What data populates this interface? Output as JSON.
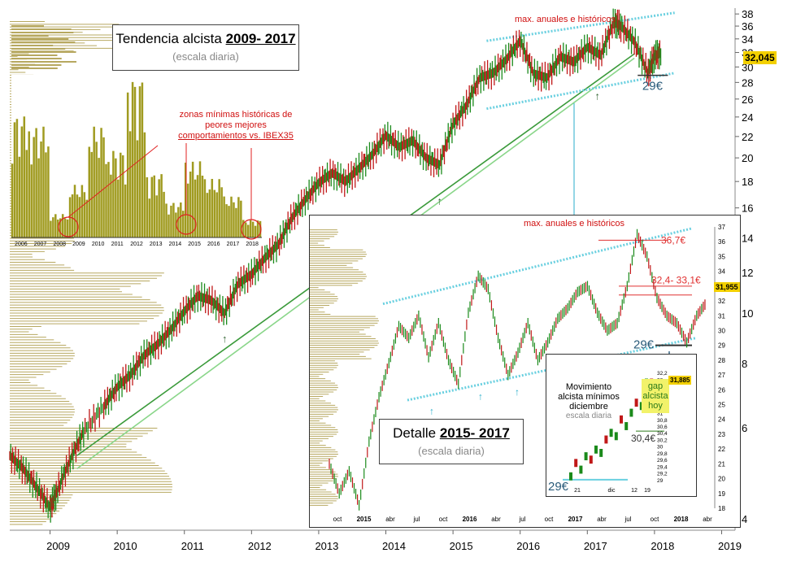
{
  "chart_data": [
    {
      "type": "line",
      "title": "Tendencia alcista 2009- 2017",
      "title_prefix": "Tendencia alcista",
      "title_period": "2009- 2017",
      "subtitle": "(escala diaria)",
      "x_ticks": [
        "2009",
        "2010",
        "2011",
        "2012",
        "2013",
        "2014",
        "2015",
        "2016",
        "2017",
        "2018",
        "2019"
      ],
      "y_ticks": [
        4,
        6,
        8,
        10,
        12,
        14,
        16,
        18,
        20,
        22,
        24,
        26,
        28,
        30,
        32,
        34,
        36,
        38
      ],
      "y_scale": "log",
      "ylim": [
        3.8,
        39
      ],
      "xlim": [
        2008.4,
        2019.2
      ],
      "last_price": "32,045",
      "series": [
        {
          "x": [
            2008.4,
            2008.6,
            2008.8,
            2009.0,
            2009.1,
            2009.3,
            2009.5,
            2009.8,
            2010.0,
            2010.2,
            2010.4,
            2010.6,
            2010.8,
            2011.0,
            2011.2,
            2011.4,
            2011.6,
            2011.8,
            2012.0,
            2012.2,
            2012.4,
            2012.6,
            2012.8,
            2013.0,
            2013.2,
            2013.4,
            2013.6,
            2013.8,
            2014.0,
            2014.2,
            2014.4,
            2014.6,
            2014.8,
            2015.0,
            2015.2,
            2015.4,
            2015.6,
            2015.8,
            2016.0,
            2016.2,
            2016.4,
            2016.6,
            2016.8,
            2017.0,
            2017.2,
            2017.4,
            2017.5,
            2017.7,
            2017.9,
            2018.0,
            2018.1
          ],
          "values": [
            5.3,
            5.0,
            4.6,
            4.2,
            4.5,
            5.2,
            5.9,
            6.6,
            7.2,
            7.6,
            8.3,
            8.7,
            9.3,
            10.1,
            10.8,
            10.6,
            10.0,
            11.4,
            11.9,
            12.8,
            13.6,
            15.3,
            16.6,
            17.9,
            18.7,
            18.0,
            19.1,
            20.3,
            22.1,
            21.0,
            21.6,
            20.0,
            19.4,
            23.2,
            25.3,
            28.6,
            29.2,
            31.1,
            33.7,
            29.1,
            28.6,
            31.4,
            30.7,
            32.8,
            31.6,
            36.7,
            36.0,
            33.6,
            29.2,
            31.5,
            32.0
          ]
        }
      ],
      "annotations": {
        "max_label": "max. anuales e históricos",
        "support_29": "29€"
      }
    },
    {
      "type": "bar",
      "title": "zonas mínimas históricas de peores mejores comportamientos vs. IBEX35",
      "title_lines": [
        "zonas mínimas históricas de",
        "peores mejores",
        "comportamientos vs. IBEX35"
      ],
      "categories": [
        "2006",
        "2007",
        "2008",
        "2009",
        "2010",
        "2011",
        "2012",
        "2013",
        "2014",
        "2015",
        "2016",
        "2017",
        "2018"
      ],
      "values": [
        42,
        38,
        8,
        18,
        38,
        30,
        55,
        22,
        12,
        26,
        20,
        14,
        6
      ]
    },
    {
      "type": "line",
      "title": "Detalle 2015- 2017",
      "title_prefix": "Detalle",
      "title_period": "2015- 2017",
      "subtitle": "(escala diaria)",
      "x_ticks": [
        "oct",
        "2015",
        "abr",
        "jul",
        "oct",
        "2016",
        "abr",
        "jul",
        "oct",
        "2017",
        "abr",
        "jul",
        "oct",
        "2018",
        "abr"
      ],
      "y_ticks": [
        18,
        19,
        20,
        21,
        22,
        23,
        24,
        25,
        26,
        27,
        28,
        29,
        30,
        31,
        32,
        33,
        34,
        35,
        36,
        37
      ],
      "last_price": "31,955",
      "levels": [
        "36,7€",
        "32,4- 33,1€",
        "29€"
      ],
      "max_label": "max. anuales e históricos",
      "values": [
        21.0,
        19.0,
        20.5,
        18.2,
        22.5,
        25.5,
        27.8,
        30.3,
        29.5,
        31.0,
        28.2,
        30.5,
        28.0,
        26.4,
        31.2,
        33.7,
        32.8,
        29.5,
        27.0,
        28.5,
        30.5,
        28.0,
        29.2,
        30.8,
        31.5,
        32.6,
        33.0,
        31.2,
        30.0,
        30.5,
        33.0,
        36.5,
        35.0,
        32.2,
        31.0,
        30.5,
        29.2,
        31.0,
        31.9
      ]
    },
    {
      "type": "line",
      "title": "Movimiento alcista mínimos diciembre",
      "title_lines": [
        "Movimiento",
        "alcista mínimos",
        "diciembre"
      ],
      "subtitle": "escala diaria",
      "x_ticks": [
        "21",
        "dic",
        "12",
        "19"
      ],
      "y_ticks": [
        "32,2",
        "32",
        "31,8",
        "31,6",
        "31,4",
        "31,2",
        "31",
        "30,8",
        "30,6",
        "30,4",
        "30,2",
        "30",
        "29,8",
        "29,6",
        "29,4",
        "29,2",
        "29"
      ],
      "last_price": "31,885",
      "gap_label": [
        "gap",
        "alcista",
        "hoy"
      ],
      "support_label": "30,4€",
      "low_label": "29€",
      "values": [
        29.1,
        29.5,
        29.3,
        29.7,
        29.6,
        29.9,
        29.8,
        30.2,
        30.4,
        30.3,
        30.8,
        30.6,
        31.0,
        31.3,
        31.2,
        31.9,
        31.9
      ]
    }
  ]
}
